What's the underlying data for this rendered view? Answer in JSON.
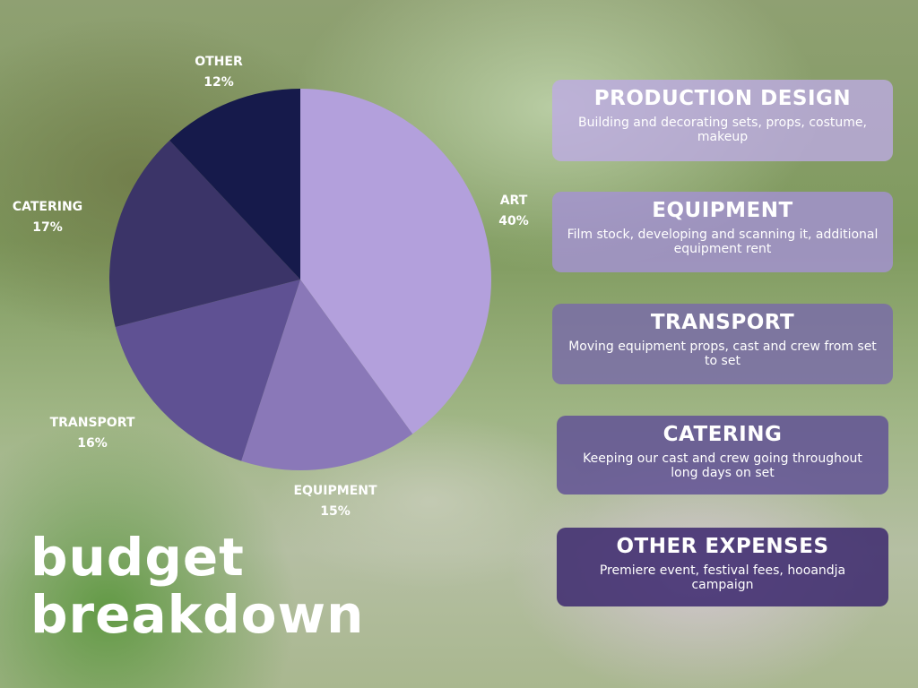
{
  "chart_data": {
    "type": "pie",
    "title": "budget breakdown",
    "categories": [
      "ART",
      "EQUIPMENT",
      "TRANSPORT",
      "CATERING",
      "OTHER"
    ],
    "values": [
      40,
      15,
      16,
      17,
      12
    ],
    "value_labels": [
      "40%",
      "15%",
      "16%",
      "17%",
      "12%"
    ],
    "colors": [
      "#b3a0dc",
      "#8a78b8",
      "#5f5193",
      "#3b3468",
      "#161a4b"
    ]
  },
  "cards": [
    {
      "title": "PRODUCTION DESIGN",
      "description": "Building and decorating sets, props, costume, makeup"
    },
    {
      "title": "EQUIPMENT",
      "description": "Film stock, developing and scanning it, additional equipment rent"
    },
    {
      "title": "TRANSPORT",
      "description": "Moving equipment props, cast and crew from set to set"
    },
    {
      "title": "CATERING",
      "description": "Keeping our cast and crew going throughout long days on set"
    },
    {
      "title": "OTHER EXPENSES",
      "description": "Premiere event, festival fees, hooandja campaign"
    }
  ]
}
